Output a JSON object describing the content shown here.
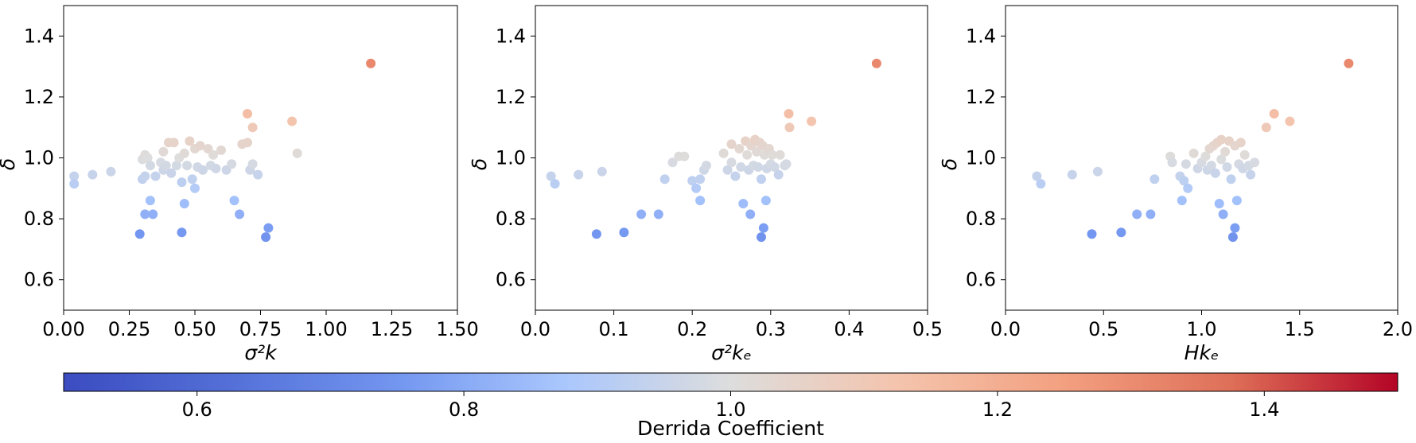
{
  "colorbar": {
    "label": "Derrida Coefficient",
    "colormap": "coolwarm",
    "range": [
      0.5,
      1.5
    ],
    "ticks": [
      0.6,
      0.8,
      1.0,
      1.2,
      1.4
    ],
    "tick_labels": [
      "0.6",
      "0.8",
      "1.0",
      "1.2",
      "1.4"
    ]
  },
  "chart_data": [
    {
      "type": "scatter",
      "xlabel": "σ²k",
      "ylabel": "δ",
      "xlim": [
        0.0,
        1.5
      ],
      "ylim": [
        0.5,
        1.5
      ],
      "xticks": [
        "0.00",
        "0.25",
        "0.50",
        "0.75",
        "1.00",
        "1.25",
        "1.50"
      ],
      "yticks": [
        "0.6",
        "0.8",
        "1.0",
        "1.2",
        "1.4"
      ],
      "grid": false,
      "color_by": "y",
      "points": [
        [
          0.04,
          0.94
        ],
        [
          0.04,
          0.915
        ],
        [
          0.11,
          0.945
        ],
        [
          0.18,
          0.955
        ],
        [
          0.29,
          0.75
        ],
        [
          0.3,
          0.93
        ],
        [
          0.3,
          0.995
        ],
        [
          0.31,
          0.94
        ],
        [
          0.31,
          1.01
        ],
        [
          0.31,
          0.815
        ],
        [
          0.32,
          1.0
        ],
        [
          0.33,
          0.975
        ],
        [
          0.33,
          0.86
        ],
        [
          0.34,
          0.815
        ],
        [
          0.35,
          0.94
        ],
        [
          0.37,
          0.985
        ],
        [
          0.38,
          1.02
        ],
        [
          0.38,
          0.96
        ],
        [
          0.39,
          0.975
        ],
        [
          0.4,
          1.05
        ],
        [
          0.41,
          0.95
        ],
        [
          0.42,
          1.05
        ],
        [
          0.43,
          0.975
        ],
        [
          0.44,
          1.0
        ],
        [
          0.45,
          0.92
        ],
        [
          0.45,
          0.755
        ],
        [
          0.46,
          1.015
        ],
        [
          0.46,
          0.85
        ],
        [
          0.47,
          0.975
        ],
        [
          0.48,
          1.055
        ],
        [
          0.49,
          0.93
        ],
        [
          0.5,
          0.9
        ],
        [
          0.5,
          1.03
        ],
        [
          0.51,
          0.97
        ],
        [
          0.52,
          1.04
        ],
        [
          0.53,
          0.96
        ],
        [
          0.55,
          1.03
        ],
        [
          0.56,
          0.975
        ],
        [
          0.57,
          1.01
        ],
        [
          0.58,
          0.965
        ],
        [
          0.6,
          1.025
        ],
        [
          0.62,
          0.96
        ],
        [
          0.64,
          0.98
        ],
        [
          0.65,
          0.86
        ],
        [
          0.67,
          0.815
        ],
        [
          0.68,
          1.045
        ],
        [
          0.7,
          1.145
        ],
        [
          0.7,
          1.05
        ],
        [
          0.71,
          0.96
        ],
        [
          0.72,
          0.98
        ],
        [
          0.72,
          1.1
        ],
        [
          0.74,
          0.945
        ],
        [
          0.77,
          0.74
        ],
        [
          0.78,
          0.77
        ],
        [
          0.87,
          1.12
        ],
        [
          0.89,
          1.015
        ],
        [
          1.17,
          1.31
        ]
      ]
    },
    {
      "type": "scatter",
      "xlabel": "σ²kₑ",
      "ylabel": "δ",
      "xlim": [
        0.0,
        0.5
      ],
      "ylim": [
        0.5,
        1.5
      ],
      "xticks": [
        "0.0",
        "0.1",
        "0.2",
        "0.3",
        "0.4",
        "0.5"
      ],
      "yticks": [
        "0.6",
        "0.8",
        "1.0",
        "1.2",
        "1.4"
      ],
      "grid": false,
      "color_by": "y",
      "points": [
        [
          0.02,
          0.94
        ],
        [
          0.025,
          0.915
        ],
        [
          0.055,
          0.945
        ],
        [
          0.085,
          0.955
        ],
        [
          0.078,
          0.75
        ],
        [
          0.113,
          0.755
        ],
        [
          0.135,
          0.815
        ],
        [
          0.157,
          0.815
        ],
        [
          0.165,
          0.93
        ],
        [
          0.175,
          0.985
        ],
        [
          0.183,
          1.005
        ],
        [
          0.19,
          1.005
        ],
        [
          0.2,
          0.925
        ],
        [
          0.205,
          0.9
        ],
        [
          0.21,
          0.86
        ],
        [
          0.21,
          0.93
        ],
        [
          0.215,
          0.96
        ],
        [
          0.218,
          0.975
        ],
        [
          0.24,
          1.015
        ],
        [
          0.245,
          0.96
        ],
        [
          0.25,
          1.045
        ],
        [
          0.25,
          0.985
        ],
        [
          0.255,
          0.94
        ],
        [
          0.26,
          1.03
        ],
        [
          0.262,
          0.97
        ],
        [
          0.265,
          0.85
        ],
        [
          0.268,
          1.055
        ],
        [
          0.27,
          1.01
        ],
        [
          0.272,
          0.96
        ],
        [
          0.274,
          0.815
        ],
        [
          0.275,
          1.04
        ],
        [
          0.278,
          0.975
        ],
        [
          0.28,
          1.06
        ],
        [
          0.282,
          1.02
        ],
        [
          0.284,
          0.97
        ],
        [
          0.286,
          1.05
        ],
        [
          0.288,
          0.93
        ],
        [
          0.288,
          0.74
        ],
        [
          0.29,
          1.04
        ],
        [
          0.291,
          0.77
        ],
        [
          0.292,
          1.01
        ],
        [
          0.294,
          0.86
        ],
        [
          0.295,
          0.965
        ],
        [
          0.298,
          1.03
        ],
        [
          0.3,
          0.98
        ],
        [
          0.302,
          1.01
        ],
        [
          0.305,
          0.97
        ],
        [
          0.31,
          0.945
        ],
        [
          0.312,
          1.01
        ],
        [
          0.318,
          0.975
        ],
        [
          0.32,
          0.98
        ],
        [
          0.323,
          1.145
        ],
        [
          0.324,
          1.1
        ],
        [
          0.352,
          1.12
        ],
        [
          0.435,
          1.31
        ]
      ]
    },
    {
      "type": "scatter",
      "xlabel": "Hkₑ",
      "ylabel": "δ",
      "xlim": [
        0.0,
        2.0
      ],
      "ylim": [
        0.5,
        1.5
      ],
      "xticks": [
        "0.0",
        "0.5",
        "1.0",
        "1.5",
        "2.0"
      ],
      "yticks": [
        "0.6",
        "0.8",
        "1.0",
        "1.2",
        "1.4"
      ],
      "grid": false,
      "color_by": "y",
      "points": [
        [
          0.16,
          0.94
        ],
        [
          0.18,
          0.915
        ],
        [
          0.34,
          0.945
        ],
        [
          0.47,
          0.955
        ],
        [
          0.44,
          0.75
        ],
        [
          0.59,
          0.755
        ],
        [
          0.67,
          0.815
        ],
        [
          0.74,
          0.815
        ],
        [
          0.76,
          0.93
        ],
        [
          0.84,
          1.005
        ],
        [
          0.85,
          0.985
        ],
        [
          0.89,
          0.94
        ],
        [
          0.9,
          0.86
        ],
        [
          0.91,
          0.925
        ],
        [
          0.92,
          0.98
        ],
        [
          0.93,
          0.9
        ],
        [
          0.96,
          1.015
        ],
        [
          0.98,
          0.965
        ],
        [
          1.0,
          0.985
        ],
        [
          1.02,
          1.005
        ],
        [
          1.03,
          0.96
        ],
        [
          1.04,
          1.03
        ],
        [
          1.05,
          0.975
        ],
        [
          1.06,
          1.04
        ],
        [
          1.07,
          0.95
        ],
        [
          1.08,
          1.05
        ],
        [
          1.09,
          0.85
        ],
        [
          1.1,
          0.995
        ],
        [
          1.1,
          1.06
        ],
        [
          1.11,
          0.815
        ],
        [
          1.12,
          1.02
        ],
        [
          1.13,
          0.97
        ],
        [
          1.14,
          1.055
        ],
        [
          1.15,
          0.93
        ],
        [
          1.16,
          0.74
        ],
        [
          1.17,
          0.77
        ],
        [
          1.17,
          1.04
        ],
        [
          1.18,
          0.86
        ],
        [
          1.19,
          0.98
        ],
        [
          1.2,
          1.05
        ],
        [
          1.21,
          0.965
        ],
        [
          1.22,
          1.01
        ],
        [
          1.24,
          0.975
        ],
        [
          1.25,
          0.945
        ],
        [
          1.27,
          0.985
        ],
        [
          1.33,
          1.1
        ],
        [
          1.37,
          1.145
        ],
        [
          1.45,
          1.12
        ],
        [
          1.75,
          1.31
        ]
      ]
    }
  ]
}
